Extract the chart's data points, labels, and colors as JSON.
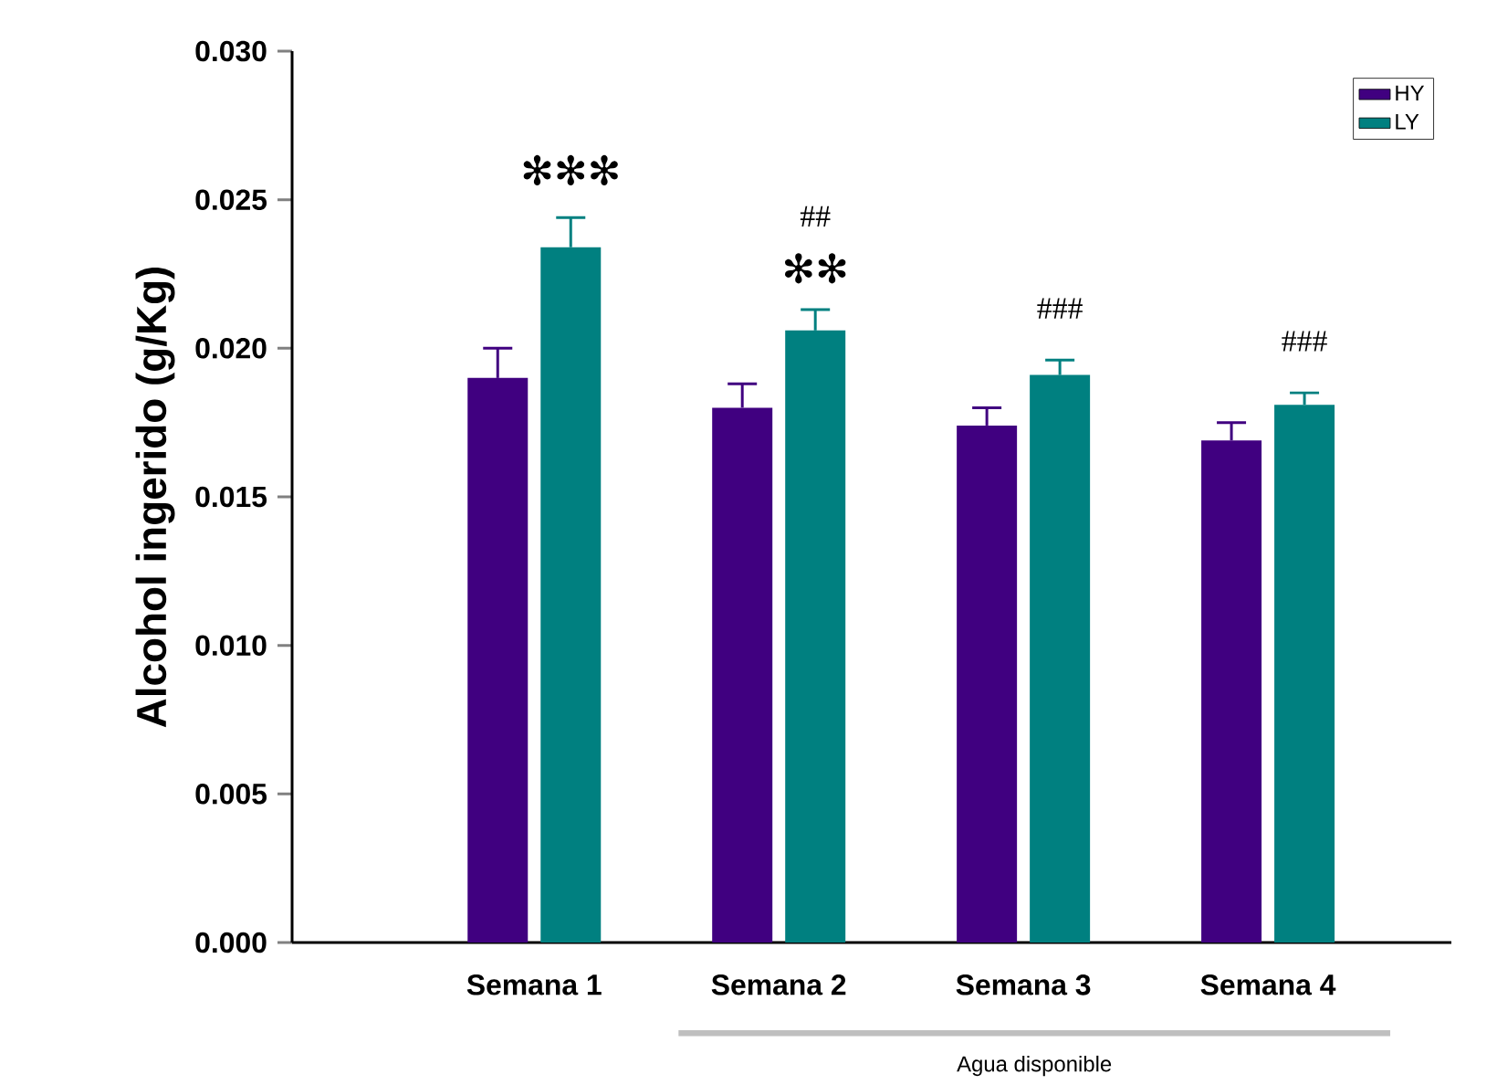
{
  "chart_data": {
    "type": "bar",
    "ylabel": "Alcohol ingerido (g/Kg)",
    "categories": [
      "Semana 1",
      "Semana 2",
      "Semana 3",
      "Semana 4"
    ],
    "series": [
      {
        "name": "HY",
        "color": "#400080",
        "values": [
          0.019,
          0.018,
          0.0174,
          0.0169
        ],
        "errors": [
          0.001,
          0.0008,
          0.0006,
          0.0006
        ]
      },
      {
        "name": "LY",
        "color": "#008080",
        "values": [
          0.0234,
          0.0206,
          0.0191,
          0.0181
        ],
        "errors": [
          0.001,
          0.0007,
          0.0005,
          0.0004
        ]
      }
    ],
    "ylim": [
      0,
      0.03
    ],
    "yticks": [
      {
        "value": 0,
        "label": "0.000"
      },
      {
        "value": 0.005,
        "label": "0.005"
      },
      {
        "value": 0.01,
        "label": "0.010"
      },
      {
        "value": 0.015,
        "label": "0.015"
      },
      {
        "value": 0.02,
        "label": "0.020"
      },
      {
        "value": 0.025,
        "label": "0.025"
      },
      {
        "value": 0.03,
        "label": "0.030"
      }
    ],
    "grid": false,
    "legend": "top right",
    "annotations": [
      "✻✻✻",
      "✻✻",
      "##",
      "###",
      "###",
      "Agua disponible"
    ]
  }
}
